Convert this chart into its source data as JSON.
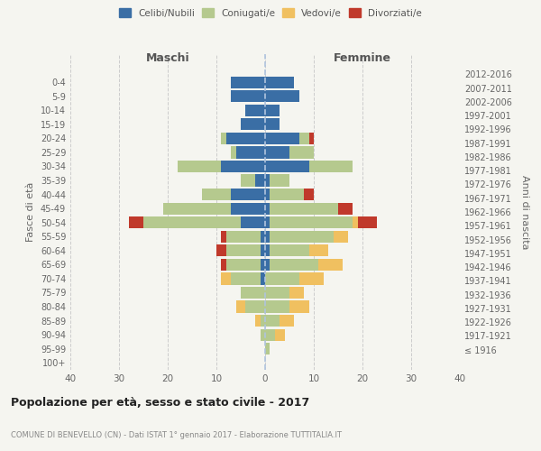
{
  "age_groups": [
    "100+",
    "95-99",
    "90-94",
    "85-89",
    "80-84",
    "75-79",
    "70-74",
    "65-69",
    "60-64",
    "55-59",
    "50-54",
    "45-49",
    "40-44",
    "35-39",
    "30-34",
    "25-29",
    "20-24",
    "15-19",
    "10-14",
    "5-9",
    "0-4"
  ],
  "birth_years": [
    "≤ 1916",
    "1917-1921",
    "1922-1926",
    "1927-1931",
    "1932-1936",
    "1937-1941",
    "1942-1946",
    "1947-1951",
    "1952-1956",
    "1957-1961",
    "1962-1966",
    "1967-1971",
    "1972-1976",
    "1977-1981",
    "1982-1986",
    "1987-1991",
    "1992-1996",
    "1997-2001",
    "2002-2006",
    "2007-2011",
    "2012-2016"
  ],
  "maschi": {
    "celibi": [
      0,
      0,
      0,
      0,
      0,
      0,
      1,
      1,
      1,
      1,
      5,
      7,
      7,
      2,
      9,
      6,
      8,
      5,
      4,
      7,
      7
    ],
    "coniugati": [
      0,
      0,
      1,
      1,
      4,
      5,
      6,
      7,
      7,
      7,
      20,
      14,
      6,
      3,
      9,
      1,
      1,
      0,
      0,
      0,
      0
    ],
    "vedovi": [
      0,
      0,
      0,
      1,
      2,
      0,
      2,
      0,
      0,
      0,
      0,
      0,
      0,
      0,
      0,
      0,
      0,
      0,
      0,
      0,
      0
    ],
    "divorziati": [
      0,
      0,
      0,
      0,
      0,
      0,
      0,
      1,
      2,
      1,
      3,
      0,
      0,
      0,
      0,
      0,
      0,
      0,
      0,
      0,
      0
    ]
  },
  "femmine": {
    "nubili": [
      0,
      0,
      0,
      0,
      0,
      0,
      0,
      1,
      1,
      1,
      1,
      1,
      1,
      1,
      9,
      5,
      7,
      3,
      3,
      7,
      6
    ],
    "coniugate": [
      0,
      1,
      2,
      3,
      5,
      5,
      7,
      10,
      8,
      13,
      17,
      14,
      7,
      4,
      9,
      5,
      2,
      0,
      0,
      0,
      0
    ],
    "vedove": [
      0,
      0,
      2,
      3,
      4,
      3,
      5,
      5,
      4,
      3,
      1,
      0,
      0,
      0,
      0,
      0,
      0,
      0,
      0,
      0,
      0
    ],
    "divorziate": [
      0,
      0,
      0,
      0,
      0,
      0,
      0,
      0,
      0,
      0,
      4,
      3,
      2,
      0,
      0,
      0,
      1,
      0,
      0,
      0,
      0
    ]
  },
  "colors": {
    "celibi": "#3a6ea5",
    "coniugati": "#b5c98e",
    "vedovi": "#f0c060",
    "divorziati": "#c0392b"
  },
  "xlim": [
    -40,
    40
  ],
  "xticks": [
    -40,
    -30,
    -20,
    -10,
    0,
    10,
    20,
    30,
    40
  ],
  "xtick_labels": [
    "40",
    "30",
    "20",
    "10",
    "0",
    "10",
    "20",
    "30",
    "40"
  ],
  "title": "Popolazione per età, sesso e stato civile - 2017",
  "subtitle": "COMUNE DI BENEVELLO (CN) - Dati ISTAT 1° gennaio 2017 - Elaborazione TUTTITALIA.IT",
  "ylabel_left": "Fasce di età",
  "ylabel_right": "Anni di nascita",
  "label_maschi": "Maschi",
  "label_femmine": "Femmine",
  "legend_labels": [
    "Celibi/Nubili",
    "Coniugati/e",
    "Vedovi/e",
    "Divorziati/e"
  ],
  "background_color": "#f5f5f0",
  "bar_height": 0.85
}
